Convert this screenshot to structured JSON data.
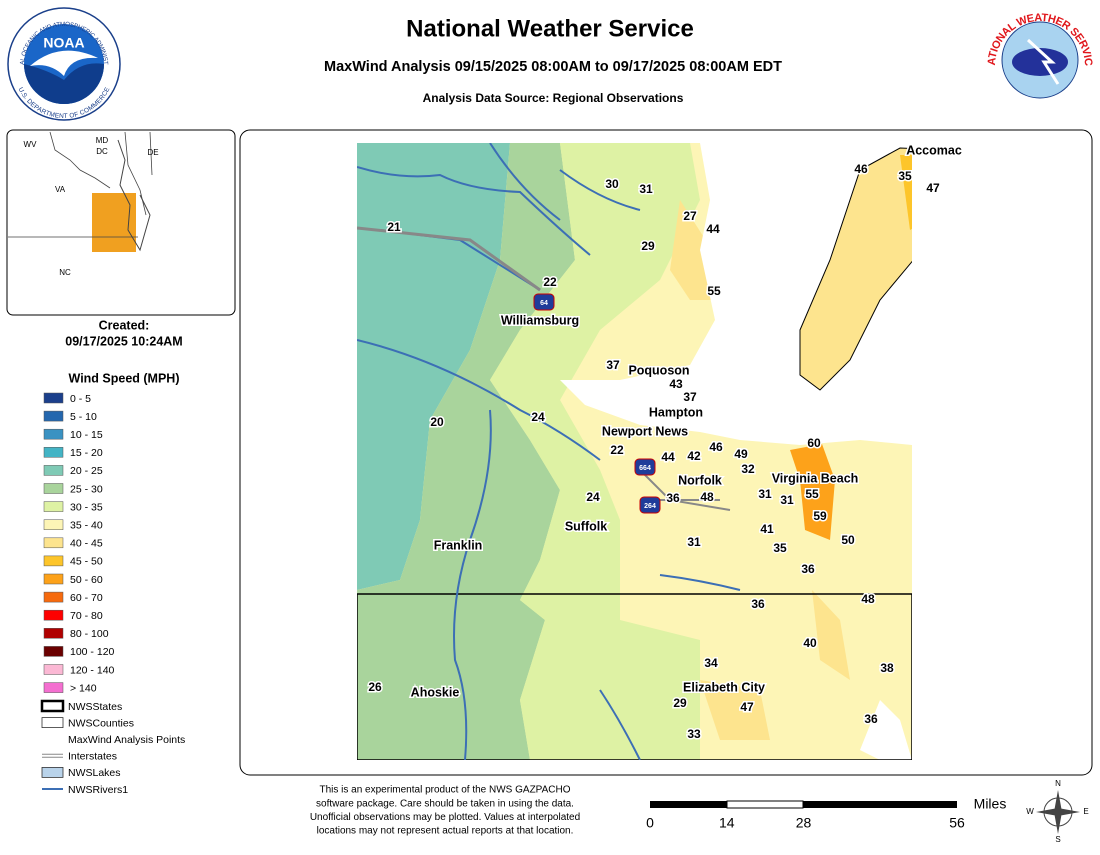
{
  "header": {
    "title": "National Weather Service",
    "subtitle": "MaxWind Analysis 09/15/2025 08:00AM to 09/17/2025 08:00AM EDT",
    "source": "Analysis Data Source: Regional Observations"
  },
  "logos": {
    "noaa": "NOAA",
    "noaa_ring_top": "NATIONAL OCEANIC AND ATMOSPHERIC ADMINISTRATION",
    "noaa_ring_bottom": "U.S. DEPARTMENT OF COMMERCE",
    "nws_ring": "NATIONAL WEATHER SERVICE"
  },
  "inset": {
    "labels": [
      "WV",
      "MD",
      "DC",
      "DE",
      "VA",
      "NC"
    ]
  },
  "created": {
    "label": "Created:",
    "date": "09/17/2025 10:24AM"
  },
  "legend": {
    "title": "Wind Speed (MPH)",
    "items": [
      {
        "label": "0 - 5",
        "color": "#1b3f8b"
      },
      {
        "label": "5 - 10",
        "color": "#2467ae"
      },
      {
        "label": "10 - 15",
        "color": "#3a92c2"
      },
      {
        "label": "15 - 20",
        "color": "#43b4c5"
      },
      {
        "label": "20 - 25",
        "color": "#7fcab5"
      },
      {
        "label": "25 - 30",
        "color": "#a9d49c"
      },
      {
        "label": "30 - 35",
        "color": "#def2a4"
      },
      {
        "label": "35 - 40",
        "color": "#fdf5b6"
      },
      {
        "label": "40 - 45",
        "color": "#fde48e"
      },
      {
        "label": "45 - 50",
        "color": "#fdc52a"
      },
      {
        "label": "50 - 60",
        "color": "#fda21a"
      },
      {
        "label": "60 - 70",
        "color": "#f66a0e"
      },
      {
        "label": "70 - 80",
        "color": "#fe0000"
      },
      {
        "label": "80 - 100",
        "color": "#b00000"
      },
      {
        "label": "100 - 120",
        "color": "#6a0000"
      },
      {
        "label": "120 - 140",
        "color": "#fbb8d4"
      },
      {
        "label": "> 140",
        "color": "#f46fd0"
      }
    ],
    "layers": [
      "NWSStates",
      "NWSCounties",
      "MaxWind Analysis Points",
      "Interstates",
      "NWSLakes",
      "NWSRivers1"
    ]
  },
  "map": {
    "places": [
      "Accomac",
      "Williamsburg",
      "Poquoson",
      "Hampton",
      "Newport News",
      "Norfolk",
      "Virginia Beach",
      "Suffolk",
      "Franklin",
      "Ahoskie",
      "Elizabeth City"
    ],
    "shields": [
      "64",
      "664",
      "264"
    ],
    "observations": [
      30,
      31,
      27,
      44,
      29,
      55,
      22,
      21,
      46,
      35,
      47,
      37,
      43,
      37,
      24,
      20,
      22,
      44,
      42,
      46,
      49,
      32,
      60,
      36,
      48,
      31,
      31,
      55,
      59,
      24,
      41,
      35,
      50,
      31,
      36,
      48,
      36,
      40,
      34,
      38,
      26,
      29,
      47,
      33,
      36
    ]
  },
  "disclaimer": [
    "This is an experimental product of the NWS GAZPACHO",
    "software package. Care should be taken in using the data.",
    "Unofficial observations may be plotted. Values at interpolated",
    "locations may not represent actual reports at that location."
  ],
  "scale": {
    "unit": "Miles",
    "ticks": [
      0,
      14,
      28,
      56
    ]
  },
  "compass": [
    "N",
    "S",
    "E",
    "W"
  ]
}
